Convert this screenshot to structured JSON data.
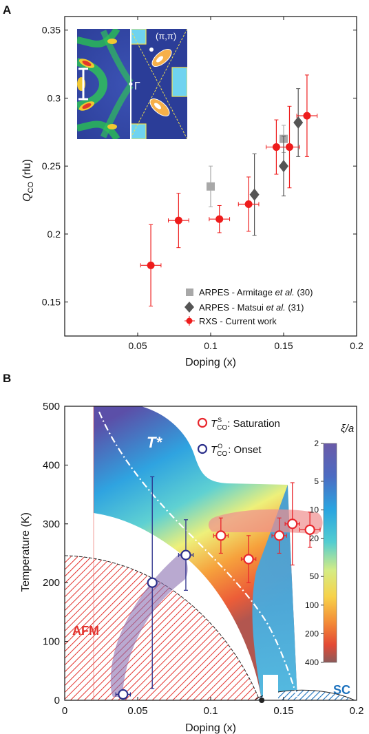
{
  "chart_data": [
    {
      "panel": "A",
      "type": "scatter",
      "xlabel": "Doping (x)",
      "ylabel_main": "Q",
      "ylabel_sub": "CO",
      "ylabel_unit": " (rlu)",
      "xlim": [
        0,
        0.2
      ],
      "ylim": [
        0.125,
        0.36
      ],
      "xticks": [
        {
          "v": 0.05,
          "label": "0.05"
        },
        {
          "v": 0.1,
          "label": "0.1"
        },
        {
          "v": 0.15,
          "label": "0.15"
        },
        {
          "v": 0.2,
          "label": "0.2"
        }
      ],
      "yticks": [
        {
          "v": 0.15,
          "label": "0.15"
        },
        {
          "v": 0.2,
          "label": "0.2"
        },
        {
          "v": 0.25,
          "label": "0.25"
        },
        {
          "v": 0.3,
          "label": "0.3"
        },
        {
          "v": 0.35,
          "label": "0.35"
        }
      ],
      "inset": {
        "gamma_label": "Γ",
        "corner_label": "(π,π)"
      },
      "series": [
        {
          "name": "ARPES - Armitage et al. (30)",
          "legend": {
            "pre": "ARPES - Armitage ",
            "em": "et al.",
            "post": " (30)"
          },
          "marker": "square",
          "color": "#a8a8a8",
          "points": [
            {
              "x": 0.1,
              "y": 0.235,
              "yerr": 0.015
            },
            {
              "x": 0.15,
              "y": 0.27,
              "yerr": 0.01
            }
          ]
        },
        {
          "name": "ARPES - Matsui et al. (31)",
          "legend": {
            "pre": "ARPES - Matsui ",
            "em": "et al.",
            "post": " (31)"
          },
          "marker": "diamond",
          "color": "#555555",
          "points": [
            {
              "x": 0.13,
              "y": 0.229,
              "yerr": 0.03
            },
            {
              "x": 0.15,
              "y": 0.25,
              "yerr": 0.022
            },
            {
              "x": 0.16,
              "y": 0.282,
              "yerr": 0.025
            }
          ]
        },
        {
          "name": "RXS - Current work",
          "legend": {
            "pre": "RXS - Current work",
            "em": "",
            "post": ""
          },
          "marker": "circle",
          "color": "#ee1c1c",
          "points": [
            {
              "x": 0.059,
              "y": 0.177,
              "xerr": 0.007,
              "yerr": 0.03
            },
            {
              "x": 0.078,
              "y": 0.21,
              "xerr": 0.007,
              "yerr": 0.02
            },
            {
              "x": 0.106,
              "y": 0.211,
              "xerr": 0.007,
              "yerr": 0.01
            },
            {
              "x": 0.126,
              "y": 0.222,
              "xerr": 0.007,
              "yerr": 0.02
            },
            {
              "x": 0.145,
              "y": 0.264,
              "xerr": 0.007,
              "yerr": 0.02
            },
            {
              "x": 0.154,
              "y": 0.264,
              "xerr": 0.007,
              "yerr": 0.03
            },
            {
              "x": 0.166,
              "y": 0.287,
              "xerr": 0.007,
              "yerr": 0.03
            }
          ]
        }
      ]
    },
    {
      "panel": "B",
      "type": "scatter",
      "xlabel": "Doping (x)",
      "ylabel": "Temperature (K)",
      "xlim": [
        0,
        0.2
      ],
      "ylim": [
        0,
        500
      ],
      "xticks": [
        {
          "v": 0,
          "label": "0"
        },
        {
          "v": 0.05,
          "label": "0.05"
        },
        {
          "v": 0.1,
          "label": "0.1"
        },
        {
          "v": 0.15,
          "label": "0.15"
        },
        {
          "v": 0.2,
          "label": "0.2"
        }
      ],
      "yticks": [
        {
          "v": 0,
          "label": "0"
        },
        {
          "v": 100,
          "label": "100"
        },
        {
          "v": 200,
          "label": "200"
        },
        {
          "v": 300,
          "label": "300"
        },
        {
          "v": 400,
          "label": "400"
        },
        {
          "v": 500,
          "label": "500"
        }
      ],
      "region_labels": {
        "afm": "AFM",
        "sc": "SC",
        "tstar": "T*"
      },
      "colorbar": {
        "title": "ξ/a",
        "ticks": [
          {
            "v": 2,
            "label": "2"
          },
          {
            "v": 5,
            "label": "5"
          },
          {
            "v": 10,
            "label": "10"
          },
          {
            "v": 20,
            "label": "20"
          },
          {
            "v": 50,
            "label": "50"
          },
          {
            "v": 100,
            "label": "100"
          },
          {
            "v": 200,
            "label": "200"
          },
          {
            "v": 400,
            "label": "400"
          }
        ]
      },
      "series": [
        {
          "name": "T_CO^S: Saturation",
          "legend": {
            "sym": "T",
            "sub": "CO",
            "sup": "S",
            "text": ": Saturation"
          },
          "color": "#e8262c",
          "points": [
            {
              "x": 0.107,
              "y": 280,
              "xerr": 0.005,
              "yerr": 30
            },
            {
              "x": 0.126,
              "y": 240,
              "xerr": 0.005,
              "yerr": 40
            },
            {
              "x": 0.147,
              "y": 280,
              "xerr": 0.005,
              "yerr": 30
            },
            {
              "x": 0.156,
              "y": 300,
              "xerr": 0.005,
              "yerr": 70
            },
            {
              "x": 0.168,
              "y": 290,
              "xerr": 0.007,
              "yerr": 30
            }
          ]
        },
        {
          "name": "T_CO^O: Onset",
          "legend": {
            "sym": "T",
            "sub": "CO",
            "sup": "O",
            "text": ": Onset"
          },
          "color": "#2b2f8a",
          "points": [
            {
              "x": 0.04,
              "y": 10,
              "xerr": 0.005,
              "yerr": 0
            },
            {
              "x": 0.06,
              "y": 200,
              "xerr": 0.003,
              "yerr": 180
            },
            {
              "x": 0.083,
              "y": 247,
              "xerr": 0.005,
              "yerr": 60
            }
          ]
        }
      ]
    }
  ],
  "panel_letters": {
    "a": "A",
    "b": "B"
  }
}
